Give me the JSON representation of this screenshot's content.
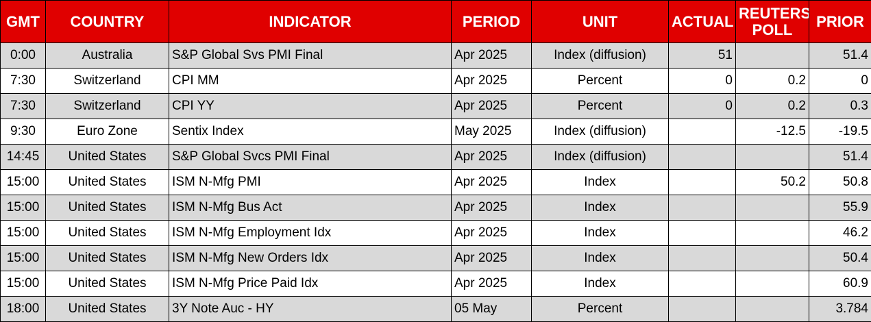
{
  "table": {
    "headers": [
      "GMT",
      "COUNTRY",
      "INDICATOR",
      "PERIOD",
      "UNIT",
      "ACTUAL",
      "REUTERS POLL",
      "PRIOR"
    ],
    "header_color": "#e00000",
    "stripe_color": "#d9d9d9",
    "rows": [
      [
        "0:00",
        "Australia",
        "S&P Global Svs PMI Final",
        "Apr 2025",
        "Index (diffusion)",
        "51",
        "",
        "51.4"
      ],
      [
        "7:30",
        "Switzerland",
        "CPI MM",
        "Apr 2025",
        "Percent",
        "0",
        "0.2",
        "0"
      ],
      [
        "7:30",
        "Switzerland",
        "CPI YY",
        "Apr 2025",
        "Percent",
        "0",
        "0.2",
        "0.3"
      ],
      [
        "9:30",
        "Euro Zone",
        "Sentix Index",
        "May 2025",
        "Index (diffusion)",
        "",
        "-12.5",
        "-19.5"
      ],
      [
        "14:45",
        "United States",
        "S&P Global Svcs PMI Final",
        "Apr 2025",
        "Index (diffusion)",
        "",
        "",
        "51.4"
      ],
      [
        "15:00",
        "United States",
        "ISM N-Mfg PMI",
        "Apr 2025",
        "Index",
        "",
        "50.2",
        "50.8"
      ],
      [
        "15:00",
        "United States",
        "ISM N-Mfg Bus Act",
        "Apr 2025",
        "Index",
        "",
        "",
        "55.9"
      ],
      [
        "15:00",
        "United States",
        "ISM N-Mfg Employment Idx",
        "Apr 2025",
        "Index",
        "",
        "",
        "46.2"
      ],
      [
        "15:00",
        "United States",
        "ISM N-Mfg New Orders Idx",
        "Apr 2025",
        "Index",
        "",
        "",
        "50.4"
      ],
      [
        "15:00",
        "United States",
        "ISM N-Mfg Price Paid Idx",
        "Apr 2025",
        "Index",
        "",
        "",
        "60.9"
      ],
      [
        "18:00",
        "United States",
        "3Y Note Auc - HY",
        "05 May",
        "Percent",
        "",
        "",
        "3.784"
      ]
    ]
  }
}
